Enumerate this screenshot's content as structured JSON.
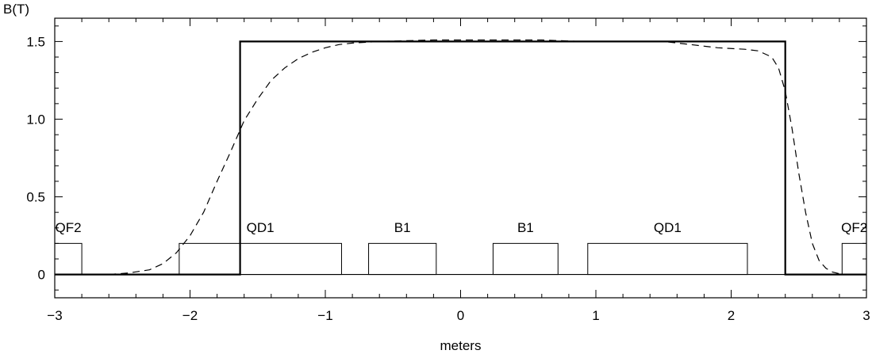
{
  "chart_data": {
    "type": "line",
    "title": "",
    "xlabel": "meters",
    "ylabel": "B(T)",
    "xlim": [
      -3,
      3
    ],
    "ylim": [
      -0.15,
      1.65
    ],
    "x_ticks": [
      {
        "value": -3,
        "label": "−3"
      },
      {
        "value": -2,
        "label": "−2"
      },
      {
        "value": -1,
        "label": "−1"
      },
      {
        "value": 0,
        "label": "0"
      },
      {
        "value": 1,
        "label": "1"
      },
      {
        "value": 2,
        "label": "2"
      },
      {
        "value": 3,
        "label": "3"
      }
    ],
    "y_ticks": [
      {
        "value": 0,
        "label": "0"
      },
      {
        "value": 0.5,
        "label": "0.5"
      },
      {
        "value": 1.0,
        "label": "1.0"
      },
      {
        "value": 1.5,
        "label": "1.5"
      }
    ],
    "grid": false,
    "series": [
      {
        "style": "solid",
        "x": [
          -3.0,
          -1.63,
          -1.63,
          2.4,
          2.4,
          3.0
        ],
        "y": [
          0,
          0,
          1.5,
          1.5,
          0,
          0
        ]
      },
      {
        "style": "dashed",
        "x": [
          -2.6,
          -2.45,
          -2.3,
          -2.2,
          -2.1,
          -2.0,
          -1.9,
          -1.8,
          -1.7,
          -1.6,
          -1.5,
          -1.4,
          -1.3,
          -1.2,
          -1.1,
          -1.0,
          -0.9,
          -0.8,
          -0.6,
          -0.4,
          -0.2,
          0.0,
          0.3,
          0.6,
          0.9,
          1.2,
          1.5,
          1.7,
          1.9,
          2.1,
          2.2,
          2.3,
          2.35,
          2.4,
          2.45,
          2.5,
          2.55,
          2.6,
          2.65,
          2.7,
          2.75,
          2.8,
          2.85
        ],
        "y": [
          0.0,
          0.01,
          0.03,
          0.07,
          0.14,
          0.25,
          0.4,
          0.6,
          0.79,
          0.99,
          1.13,
          1.25,
          1.33,
          1.39,
          1.43,
          1.46,
          1.48,
          1.49,
          1.5,
          1.505,
          1.51,
          1.51,
          1.51,
          1.51,
          1.5,
          1.5,
          1.5,
          1.48,
          1.46,
          1.45,
          1.44,
          1.4,
          1.33,
          1.18,
          0.94,
          0.65,
          0.4,
          0.2,
          0.09,
          0.04,
          0.015,
          0.005,
          0.0
        ]
      }
    ],
    "elements": [
      {
        "label": "QF2",
        "x0": -3.0,
        "x1": -2.8,
        "height": 0.2
      },
      {
        "label": "QD1",
        "x0": -2.08,
        "x1": -0.88,
        "height": 0.2
      },
      {
        "label": "B1",
        "x0": -0.68,
        "x1": -0.18,
        "height": 0.2
      },
      {
        "label": "B1",
        "x0": 0.24,
        "x1": 0.72,
        "height": 0.2
      },
      {
        "label": "QD1",
        "x0": 0.94,
        "x1": 2.12,
        "height": 0.2
      },
      {
        "label": "QF2",
        "x0": 2.82,
        "x1": 3.0,
        "height": 0.2
      }
    ],
    "element_label_y": 0.3
  }
}
